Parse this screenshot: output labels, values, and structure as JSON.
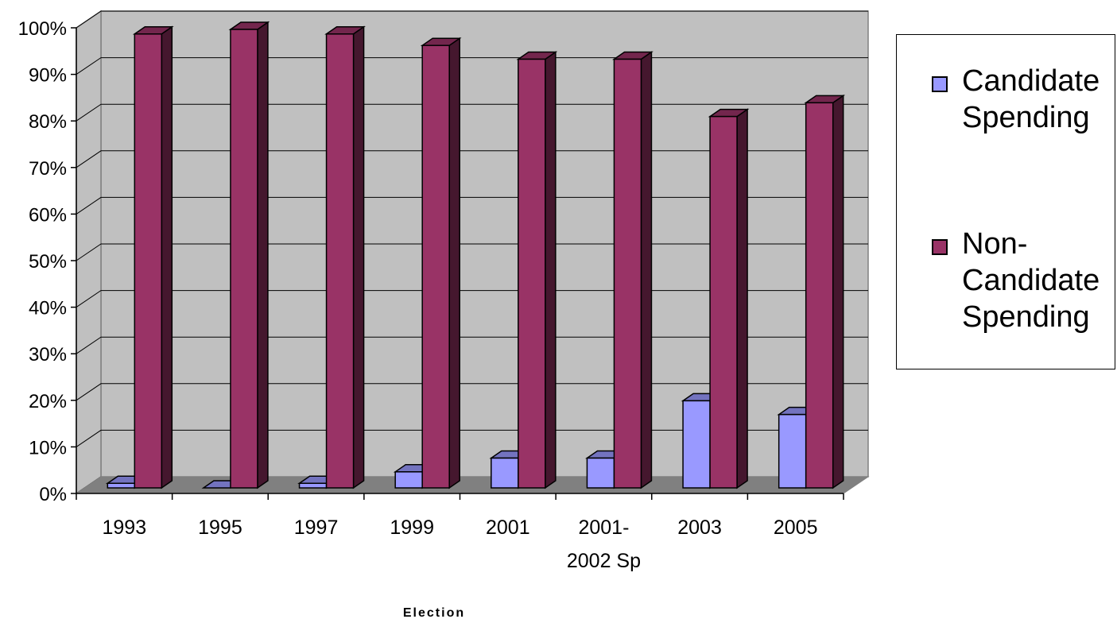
{
  "chart_data": {
    "type": "bar",
    "categories": [
      "1993",
      "1995",
      "1997",
      "1999",
      "2001",
      "2001-\n2002 Sp",
      "2003",
      "2005"
    ],
    "series": [
      {
        "name": "Candidate Spending",
        "values": [
          1,
          0,
          1,
          3.5,
          6.5,
          6.5,
          19,
          16
        ],
        "color": "#9999ff"
      },
      {
        "name": "Non-Candidate Spending",
        "values": [
          99,
          100,
          99,
          96.5,
          93.5,
          93.5,
          81,
          84
        ],
        "color": "#993366"
      }
    ],
    "y_ticks": [
      "0%",
      "10%",
      "20%",
      "30%",
      "40%",
      "50%",
      "60%",
      "70%",
      "80%",
      "90%",
      "100%"
    ],
    "ylim": [
      0,
      100
    ],
    "xlabel": "Election",
    "ylabel": "",
    "grid": true,
    "legend": "right",
    "style": "3d-clustered-column",
    "wall_color": "#c0c0c0",
    "floor_color": "#808080"
  }
}
